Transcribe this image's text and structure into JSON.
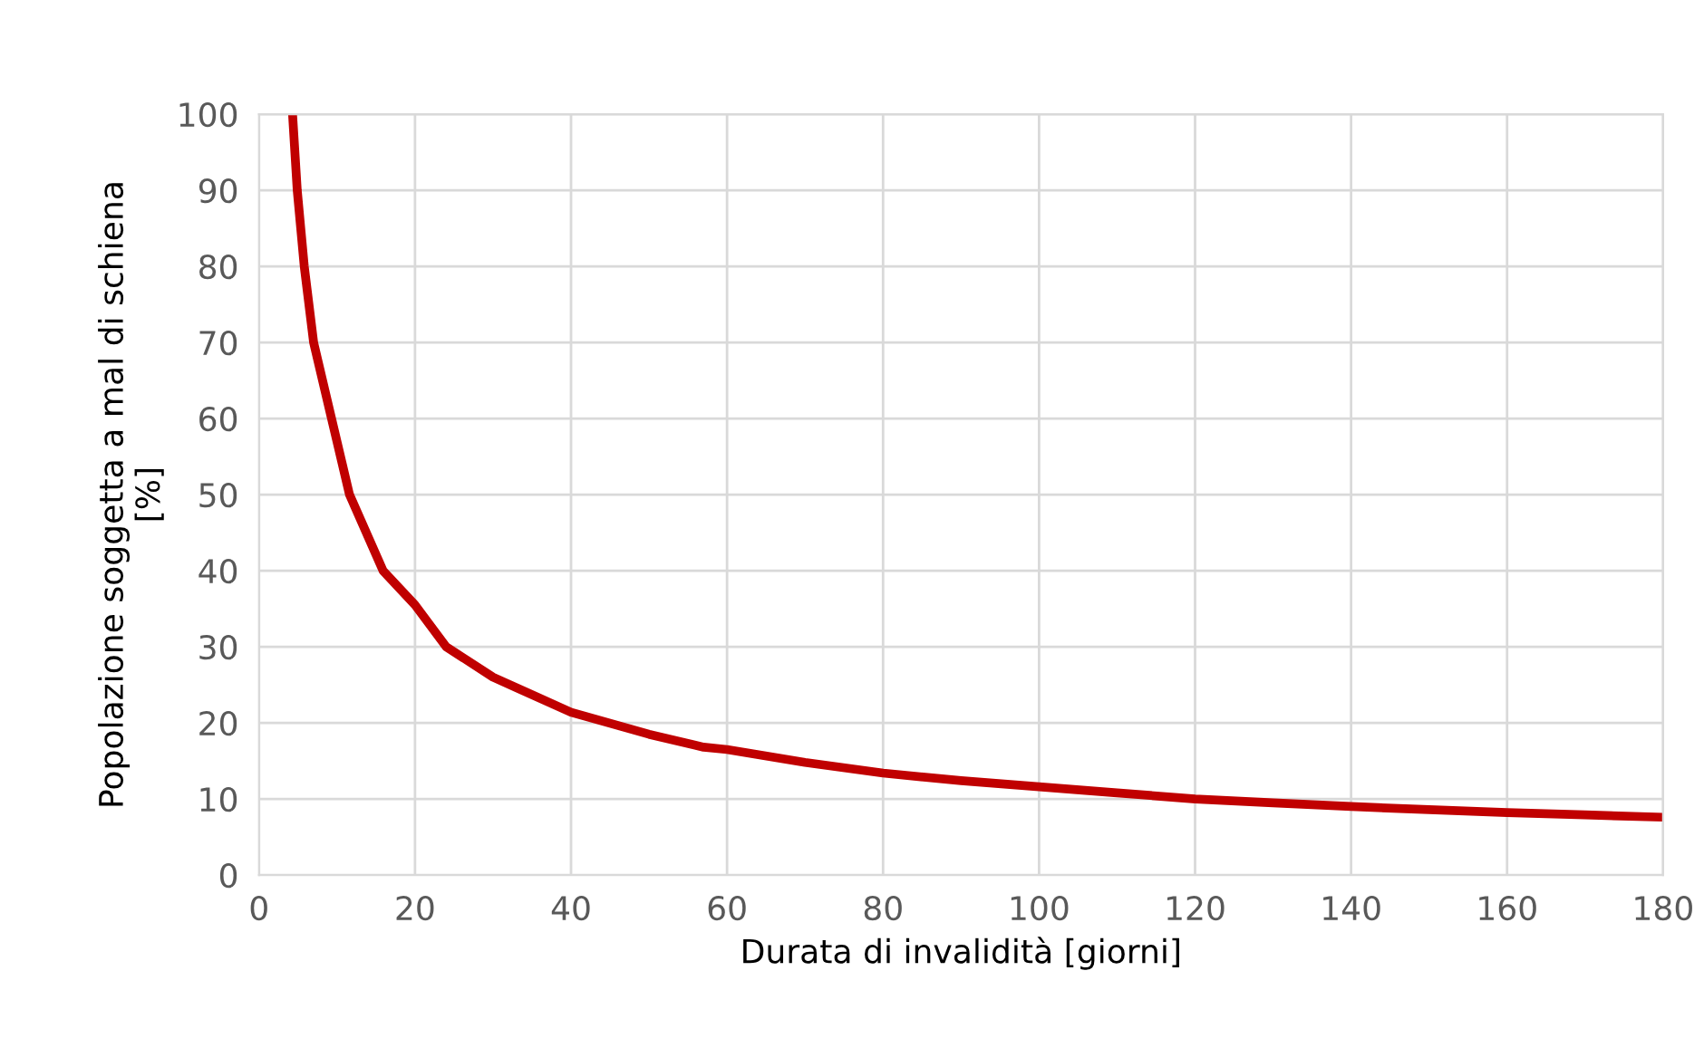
{
  "chart_data": {
    "type": "line",
    "xlabel": "Durata di invalidità [giorni]",
    "ylabel": "Popolazione soggetta a mal di schiena\n[%]",
    "series": [
      {
        "color": "#c00000",
        "x": [
          4.3,
          4.9,
          5.8,
          7.0,
          9.3,
          11.6,
          15.9,
          20,
          24,
          30,
          40,
          50,
          57,
          60,
          70,
          80,
          90,
          100,
          110,
          120,
          130,
          140,
          150,
          160,
          170,
          180
        ],
        "values": [
          100,
          90,
          80,
          70,
          60,
          50,
          40,
          35.5,
          30,
          26,
          21.4,
          18.5,
          16.8,
          16.5,
          14.8,
          13.4,
          12.4,
          11.6,
          10.8,
          10.0,
          9.5,
          9.0,
          8.6,
          8.2,
          7.9,
          7.6
        ]
      }
    ],
    "xlim": [
      0,
      180
    ],
    "xticks": [
      0,
      20,
      40,
      60,
      80,
      100,
      120,
      140,
      160,
      180
    ],
    "ylim": [
      0,
      100
    ],
    "yticks": [
      0,
      10,
      20,
      30,
      40,
      50,
      60,
      70,
      80,
      90,
      100
    ],
    "grid": true,
    "legend": false,
    "marker": "none",
    "line_style": "solid"
  }
}
